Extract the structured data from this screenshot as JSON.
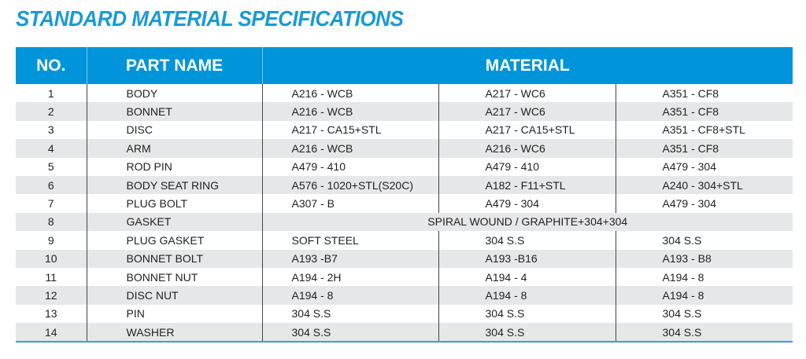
{
  "title": "STANDARD MATERIAL SPECIFICATIONS",
  "headers": {
    "no": "NO.",
    "part": "PART NAME",
    "material": "MATERIAL"
  },
  "colors": {
    "accent": "#0095da",
    "title": "#1a9ad6",
    "stripe": "#e6e7e8"
  },
  "rows": [
    {
      "no": "1",
      "part": "BODY",
      "materials": [
        "A216 - WCB",
        "A217 - WC6",
        "A351 - CF8"
      ]
    },
    {
      "no": "2",
      "part": "BONNET",
      "materials": [
        "A216 - WCB",
        "A217 - WC6",
        "A351 - CF8"
      ]
    },
    {
      "no": "3",
      "part": "DISC",
      "materials": [
        "A217 - CA15+STL",
        "A217 - CA15+STL",
        "A351 - CF8+STL"
      ]
    },
    {
      "no": "4",
      "part": "ARM",
      "materials": [
        "A216 - WCB",
        "A216 - WC6",
        "A351 - CF8"
      ]
    },
    {
      "no": "5",
      "part": "ROD PIN",
      "materials": [
        "A479 - 410",
        "A479 - 410",
        "A479 - 304"
      ]
    },
    {
      "no": "6",
      "part": "BODY SEAT RING",
      "materials": [
        "A576 - 1020+STL(S20C)",
        "A182 - F11+STL",
        "A240 - 304+STL"
      ]
    },
    {
      "no": "7",
      "part": "PLUG BOLT",
      "materials": [
        "A307 - B",
        "A479 - 304",
        "A479 - 304"
      ]
    },
    {
      "no": "8",
      "part": "GASKET",
      "materials": [
        "SPIRAL WOUND / GRAPHITE+304+304"
      ]
    },
    {
      "no": "9",
      "part": "PLUG GASKET",
      "materials": [
        "SOFT STEEL",
        "304 S.S",
        "304 S.S"
      ]
    },
    {
      "no": "10",
      "part": "BONNET BOLT",
      "materials": [
        "A193 -B7",
        "A193 -B16",
        "A193 - B8"
      ]
    },
    {
      "no": "11",
      "part": "BONNET NUT",
      "materials": [
        "A194 - 2H",
        "A194 - 4",
        "A194 - 8"
      ]
    },
    {
      "no": "12",
      "part": "DISC NUT",
      "materials": [
        "A194 - 8",
        "A194 - 8",
        "A194 - 8"
      ]
    },
    {
      "no": "13",
      "part": "PIN",
      "materials": [
        "304 S.S",
        "304 S.S",
        "304 S.S"
      ]
    },
    {
      "no": "14",
      "part": "WASHER",
      "materials": [
        "304 S.S",
        "304 S.S",
        "304 S.S"
      ]
    }
  ]
}
